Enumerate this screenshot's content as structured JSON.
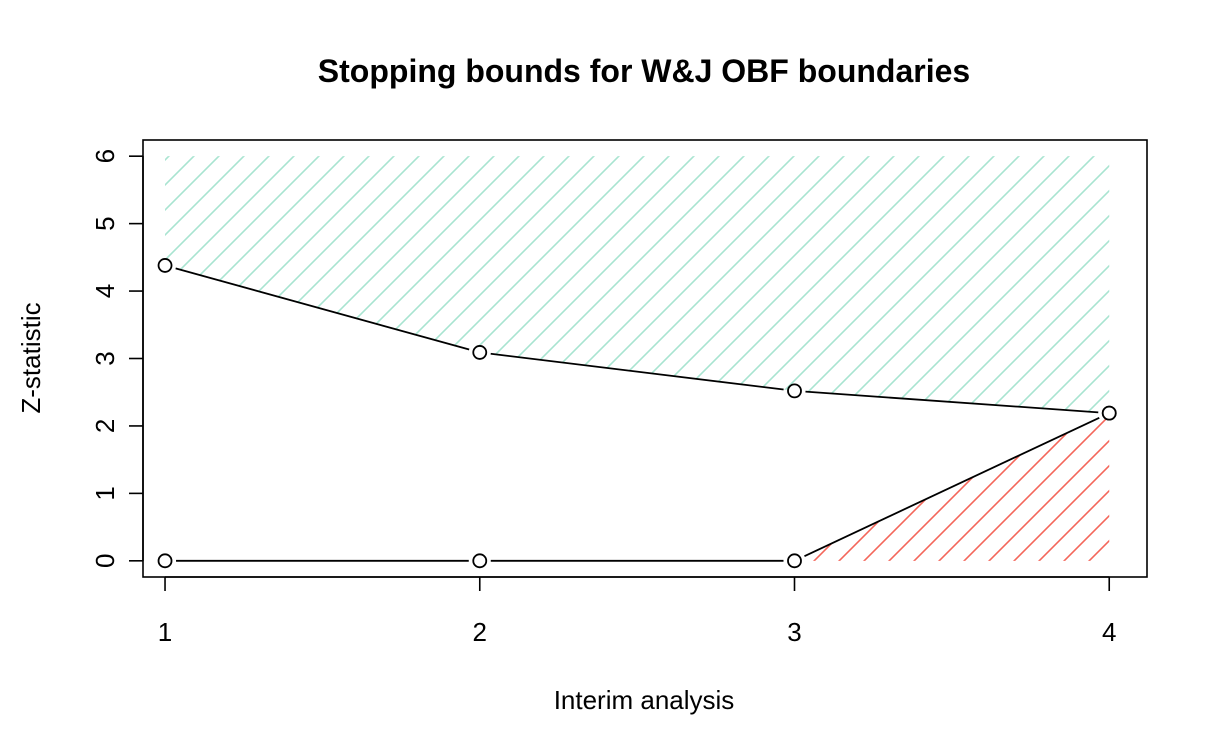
{
  "chart_data": {
    "type": "line",
    "title": "Stopping bounds for W&J OBF boundaries",
    "xlabel": "Interim analysis",
    "ylabel": "Z-statistic",
    "x": [
      1,
      2,
      3,
      4
    ],
    "xlim": [
      0.93,
      4.12
    ],
    "ylim": [
      -0.24,
      6.24
    ],
    "xticks": [
      "1",
      "2",
      "3",
      "4"
    ],
    "yticks": [
      "0",
      "1",
      "2",
      "3",
      "4",
      "5",
      "6"
    ],
    "series": [
      {
        "values": [
          4.38,
          3.09,
          2.52,
          2.19
        ],
        "color": "#000000"
      },
      {
        "values": [
          0,
          0,
          0,
          2.19
        ],
        "color": "#000000"
      }
    ],
    "regions": [
      {
        "bound": "upper",
        "fill": "#a8e4d0",
        "pattern": "diagonal-hatch",
        "to_y": 6
      },
      {
        "bound": "lower",
        "fill": "#f4665a",
        "pattern": "diagonal-hatch",
        "to_y": 0
      }
    ],
    "grid": false,
    "legend": "none"
  }
}
